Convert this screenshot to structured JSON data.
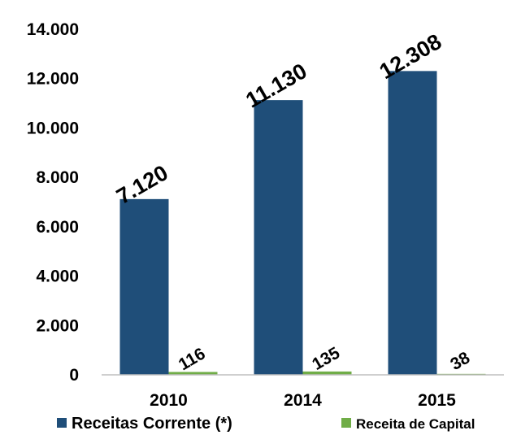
{
  "chart_data": {
    "type": "bar",
    "categories": [
      "2010",
      "2014",
      "2015"
    ],
    "series": [
      {
        "name": "Receitas Corrente (*)",
        "color": "#1f4e79",
        "values": [
          7120,
          11130,
          12308
        ],
        "value_labels": [
          "7.120",
          "11.130",
          "12.308"
        ]
      },
      {
        "name": "Receita de Capital",
        "color": "#70ad47",
        "values": [
          116,
          135,
          38
        ]
      }
    ],
    "ylim": [
      0,
      14000
    ],
    "yticks": [
      0,
      {
        "value": 2000,
        "label": "2.000"
      },
      {
        "value": 4000,
        "label": "4.000"
      },
      {
        "value": 6000,
        "label": "6.000"
      },
      {
        "value": 8000,
        "label": "8.000"
      },
      {
        "value": 10000,
        "label": "10.000"
      },
      {
        "value": 12000,
        "label": "12.000"
      },
      {
        "value": 14000,
        "label": "14.000"
      }
    ],
    "grid": false,
    "legend": "bottom"
  }
}
